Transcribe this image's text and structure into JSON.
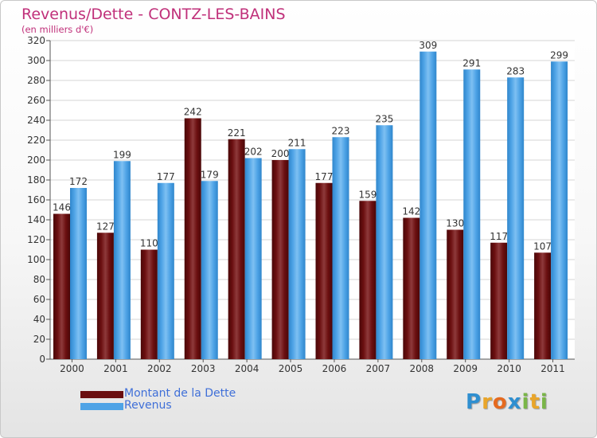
{
  "title": "Revenus/Dette - CONTZ-LES-BAINS",
  "subtitle": "(en milliers d'€)",
  "colors": {
    "series1": "#6b0f10",
    "series2": "#4ea3e6",
    "title": "#c0307a",
    "legend_text": "#3f6fd8"
  },
  "legend": [
    {
      "label": "Montant de la Dette",
      "color": "#6b0f10"
    },
    {
      "label": "Revenus",
      "color": "#4ea3e6"
    }
  ],
  "logo": {
    "text": "Proxiti",
    "letters": [
      {
        "ch": "P",
        "color": "#2f8fd0"
      },
      {
        "ch": "r",
        "color": "#e9a52a"
      },
      {
        "ch": "o",
        "color": "#e56a1f"
      },
      {
        "ch": "x",
        "color": "#2f8fd0"
      },
      {
        "ch": "i",
        "color": "#7ab648"
      },
      {
        "ch": "t",
        "color": "#e9a52a"
      },
      {
        "ch": "i",
        "color": "#7ab648"
      }
    ]
  },
  "chart_data": {
    "type": "bar",
    "title": "Revenus/Dette - CONTZ-LES-BAINS",
    "subtitle": "(en milliers d'€)",
    "categories": [
      "2000",
      "2001",
      "2002",
      "2003",
      "2004",
      "2005",
      "2006",
      "2007",
      "2008",
      "2009",
      "2010",
      "2011"
    ],
    "series": [
      {
        "name": "Montant de la Dette",
        "values": [
          146,
          127,
          110,
          242,
          221,
          200,
          177,
          159,
          142,
          130,
          117,
          107
        ]
      },
      {
        "name": "Revenus",
        "values": [
          172,
          199,
          177,
          179,
          202,
          211,
          223,
          235,
          309,
          291,
          283,
          299
        ]
      }
    ],
    "ylim": [
      0,
      320
    ],
    "ytick_step": 20,
    "grid": true,
    "legend_position": "bottom-left"
  }
}
